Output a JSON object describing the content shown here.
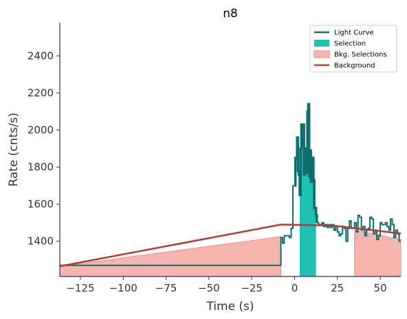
{
  "chart_data": {
    "type": "line",
    "title": "n8",
    "xlabel": "Time (s)",
    "ylabel": "Rate (cnts/s)",
    "xlim": [
      -137,
      62
    ],
    "ylim": [
      1210,
      2580
    ],
    "xticks": [
      -125,
      -100,
      -75,
      -50,
      -25,
      0,
      25,
      50
    ],
    "xtick_labels": [
      "−125",
      "−100",
      "−75",
      "−50",
      "−25",
      "0",
      "25",
      "50"
    ],
    "yticks": [
      1400,
      1600,
      1800,
      2000,
      2200,
      2400
    ],
    "ytick_labels": [
      "1400",
      "1600",
      "1800",
      "2000",
      "2200",
      "2400"
    ],
    "legend": {
      "placement": "top-right",
      "entries": [
        {
          "label": "Light Curve",
          "kind": "line",
          "color": "#0e6e6e"
        },
        {
          "label": "Selection",
          "kind": "patch",
          "color": "#20c0b5"
        },
        {
          "label": "Bkg. Selections",
          "kind": "patch",
          "color": "#f5b5ae"
        },
        {
          "label": "Background",
          "kind": "line",
          "color": "#b83a2e"
        }
      ]
    },
    "colors": {
      "light_curve": "#0e6e6e",
      "selection": "#20c0b5",
      "bkg_selection_fill": "#f5b5ae",
      "bkg_selection_edge": "#e8928a",
      "background": "#b83a2e"
    },
    "background_fit": [
      [
        -137,
        1265
      ],
      [
        -8,
        1490
      ],
      [
        22,
        1485
      ],
      [
        62,
        1442
      ]
    ],
    "selection_range": [
      3,
      12.5
    ],
    "bkg_selections": [
      {
        "x": [
          -137,
          -8
        ],
        "y": [
          1265,
          1425
        ]
      },
      {
        "x": [
          35,
          62
        ],
        "y": [
          1460,
          1410
        ]
      }
    ],
    "light_curve_steps": [
      [
        -137,
        1270
      ],
      [
        -129,
        1270
      ],
      [
        -124,
        1270
      ],
      [
        -8,
        1420
      ],
      [
        -7,
        1390
      ],
      [
        -6,
        1430
      ],
      [
        -4,
        1430
      ],
      [
        -3,
        1420
      ],
      [
        -2,
        1470
      ],
      [
        -1,
        1700
      ],
      [
        0,
        1700
      ],
      [
        0.5,
        1850
      ],
      [
        1,
        1850
      ],
      [
        1.5,
        1960
      ],
      [
        2,
        1780
      ],
      [
        2.5,
        1760
      ],
      [
        3,
        1650
      ],
      [
        3.5,
        1900
      ],
      [
        4,
        2030
      ],
      [
        4.5,
        1920
      ],
      [
        5,
        2030
      ],
      [
        5.5,
        1760
      ],
      [
        6,
        1900
      ],
      [
        6.5,
        1800
      ],
      [
        7,
        1770
      ],
      [
        7.5,
        2100
      ],
      [
        8,
        2140
      ],
      [
        8.5,
        1750
      ],
      [
        9,
        1890
      ],
      [
        9.5,
        1720
      ],
      [
        10,
        1720
      ],
      [
        10.5,
        1850
      ],
      [
        11,
        1730
      ],
      [
        11.5,
        1580
      ],
      [
        12,
        1580
      ],
      [
        12.5,
        1540
      ],
      [
        13,
        1500
      ],
      [
        14,
        1490
      ],
      [
        15,
        1490
      ],
      [
        16,
        1500
      ],
      [
        17,
        1480
      ],
      [
        18,
        1490
      ],
      [
        19,
        1475
      ],
      [
        20,
        1490
      ],
      [
        21,
        1475
      ],
      [
        22,
        1490
      ],
      [
        23,
        1460
      ],
      [
        24,
        1480
      ],
      [
        25,
        1450
      ],
      [
        26,
        1430
      ],
      [
        27,
        1440
      ],
      [
        28,
        1480
      ],
      [
        29,
        1470
      ],
      [
        30,
        1400
      ],
      [
        31,
        1470
      ],
      [
        32,
        1510
      ],
      [
        33,
        1470
      ],
      [
        34,
        1470
      ],
      [
        35,
        1500
      ],
      [
        36,
        1450
      ],
      [
        37,
        1540
      ],
      [
        38,
        1530
      ],
      [
        39,
        1460
      ],
      [
        40,
        1480
      ],
      [
        41,
        1430
      ],
      [
        42,
        1460
      ],
      [
        43,
        1470
      ],
      [
        44,
        1530
      ],
      [
        45,
        1520
      ],
      [
        46,
        1440
      ],
      [
        47,
        1460
      ],
      [
        48,
        1410
      ],
      [
        49,
        1430
      ],
      [
        50,
        1500
      ],
      [
        51,
        1490
      ],
      [
        52,
        1490
      ],
      [
        53,
        1500
      ],
      [
        54,
        1480
      ],
      [
        55,
        1460
      ],
      [
        56,
        1520
      ],
      [
        57,
        1490
      ],
      [
        58,
        1420
      ],
      [
        59,
        1460
      ],
      [
        60,
        1440
      ],
      [
        61,
        1400
      ],
      [
        62,
        1400
      ]
    ]
  }
}
